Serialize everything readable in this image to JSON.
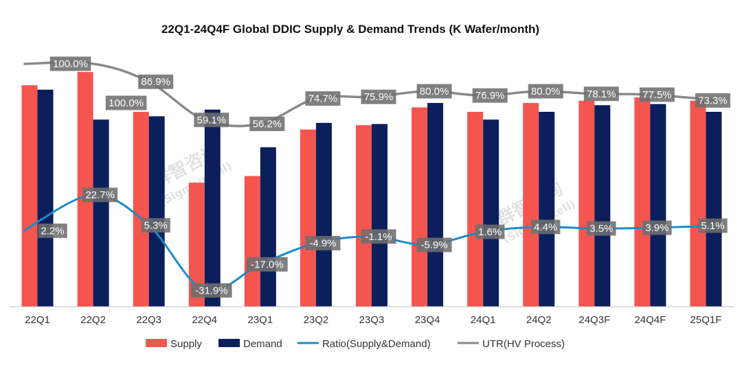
{
  "chart_data": {
    "type": "bar",
    "title": "22Q1-24Q4F Global DDIC Supply & Demand Trends (K Wafer/month)",
    "xlabel": "",
    "ylabel": "",
    "categories": [
      "22Q1",
      "22Q2",
      "22Q3",
      "22Q4",
      "23Q1",
      "23Q2",
      "23Q3",
      "23Q4",
      "24Q1",
      "24Q2",
      "24Q3F",
      "24Q4F",
      "25Q1F"
    ],
    "series": [
      {
        "name": "Supply",
        "kind": "bar",
        "color": "#f4564f",
        "values": [
          1000,
          1060,
          880,
          560,
          590,
          800,
          820,
          900,
          880,
          920,
          930,
          945,
          930
        ]
      },
      {
        "name": "Demand",
        "kind": "bar",
        "color": "#0b1f5c",
        "values": [
          980,
          845,
          860,
          890,
          720,
          830,
          825,
          920,
          845,
          880,
          910,
          915,
          880
        ]
      }
    ],
    "lines": [
      {
        "name": "Ratio(Supply&Demand)",
        "color": "#1b8ac9",
        "unit": "%",
        "values": [
          2.2,
          22.7,
          5.3,
          -31.9,
          -17.0,
          -4.9,
          -1.1,
          -5.9,
          1.6,
          4.4,
          3.5,
          3.9,
          5.1
        ],
        "labels": [
          "2.2%",
          "22.7%",
          "5.3%",
          "-31.9%",
          "-17.0%",
          "-4.9%",
          "-1.1%",
          "-5.9%",
          "1.6%",
          "4.4%",
          "3.5%",
          "3.9%",
          "5.1%"
        ]
      },
      {
        "name": "UTR(HV Process)",
        "color": "#8a8a8a",
        "unit": "%",
        "values": [
          100.0,
          100.0,
          86.9,
          59.1,
          56.2,
          74.7,
          75.9,
          80.0,
          76.9,
          80.0,
          78.1,
          77.5,
          73.3
        ],
        "labels": [
          "100.0%",
          "100.0%",
          "86.9%",
          "59.1%",
          "56.2%",
          "74.7%",
          "75.9%",
          "80.0%",
          "76.9%",
          "80.0%",
          "78.1%",
          "77.5%",
          "73.3%"
        ]
      }
    ],
    "ylim": [
      0,
      1100
    ],
    "grid": false,
    "legend": "bottom",
    "watermark": [
      "群智咨询",
      "(Sigmaintell)"
    ]
  }
}
